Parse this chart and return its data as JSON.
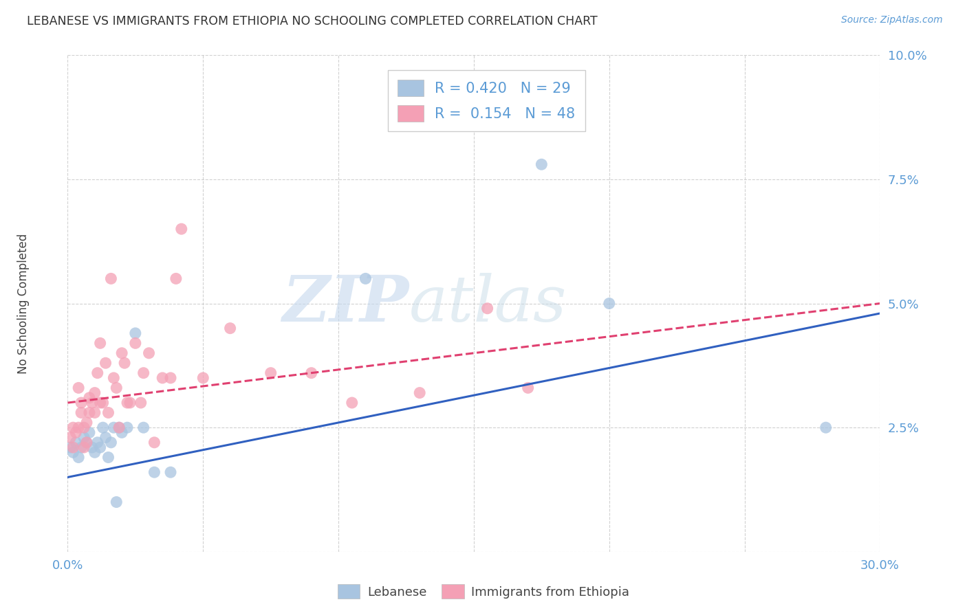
{
  "title": "LEBANESE VS IMMIGRANTS FROM ETHIOPIA NO SCHOOLING COMPLETED CORRELATION CHART",
  "source": "Source: ZipAtlas.com",
  "ylabel": "No Schooling Completed",
  "xlim": [
    0.0,
    0.3
  ],
  "ylim": [
    0.0,
    0.1
  ],
  "xticks": [
    0.0,
    0.05,
    0.1,
    0.15,
    0.2,
    0.25,
    0.3
  ],
  "yticks": [
    0.0,
    0.025,
    0.05,
    0.075,
    0.1
  ],
  "ytick_labels": [
    "",
    "2.5%",
    "5.0%",
    "7.5%",
    "10.0%"
  ],
  "xtick_labels": [
    "0.0%",
    "",
    "",
    "",
    "",
    "",
    "30.0%"
  ],
  "legend1_label": "Lebanese",
  "legend2_label": "Immigrants from Ethiopia",
  "R1": 0.42,
  "N1": 29,
  "R2": 0.154,
  "N2": 48,
  "color1": "#a8c4e0",
  "color2": "#f4a0b5",
  "line1_color": "#3060c0",
  "line2_color": "#e04070",
  "line1_start_y": 0.015,
  "line1_end_y": 0.048,
  "line2_start_y": 0.03,
  "line2_end_y": 0.05,
  "watermark_part1": "ZIP",
  "watermark_part2": "atlas",
  "lebanese_x": [
    0.001,
    0.002,
    0.003,
    0.004,
    0.005,
    0.006,
    0.007,
    0.008,
    0.009,
    0.01,
    0.011,
    0.012,
    0.013,
    0.014,
    0.015,
    0.016,
    0.017,
    0.018,
    0.019,
    0.02,
    0.022,
    0.025,
    0.028,
    0.032,
    0.038,
    0.11,
    0.175,
    0.2,
    0.28
  ],
  "lebanese_y": [
    0.021,
    0.02,
    0.022,
    0.019,
    0.021,
    0.023,
    0.022,
    0.024,
    0.021,
    0.02,
    0.022,
    0.021,
    0.025,
    0.023,
    0.019,
    0.022,
    0.025,
    0.01,
    0.025,
    0.024,
    0.025,
    0.044,
    0.025,
    0.016,
    0.016,
    0.055,
    0.078,
    0.05,
    0.025
  ],
  "ethiopia_x": [
    0.001,
    0.002,
    0.002,
    0.003,
    0.004,
    0.004,
    0.005,
    0.005,
    0.006,
    0.006,
    0.007,
    0.007,
    0.008,
    0.008,
    0.009,
    0.01,
    0.01,
    0.011,
    0.012,
    0.012,
    0.013,
    0.014,
    0.015,
    0.016,
    0.017,
    0.018,
    0.019,
    0.02,
    0.021,
    0.022,
    0.023,
    0.025,
    0.027,
    0.028,
    0.03,
    0.032,
    0.035,
    0.038,
    0.04,
    0.042,
    0.05,
    0.06,
    0.075,
    0.09,
    0.105,
    0.13,
    0.155,
    0.17
  ],
  "ethiopia_y": [
    0.023,
    0.021,
    0.025,
    0.024,
    0.033,
    0.025,
    0.028,
    0.03,
    0.021,
    0.025,
    0.022,
    0.026,
    0.031,
    0.028,
    0.03,
    0.028,
    0.032,
    0.036,
    0.042,
    0.03,
    0.03,
    0.038,
    0.028,
    0.055,
    0.035,
    0.033,
    0.025,
    0.04,
    0.038,
    0.03,
    0.03,
    0.042,
    0.03,
    0.036,
    0.04,
    0.022,
    0.035,
    0.035,
    0.055,
    0.065,
    0.035,
    0.045,
    0.036,
    0.036,
    0.03,
    0.032,
    0.049,
    0.033
  ]
}
